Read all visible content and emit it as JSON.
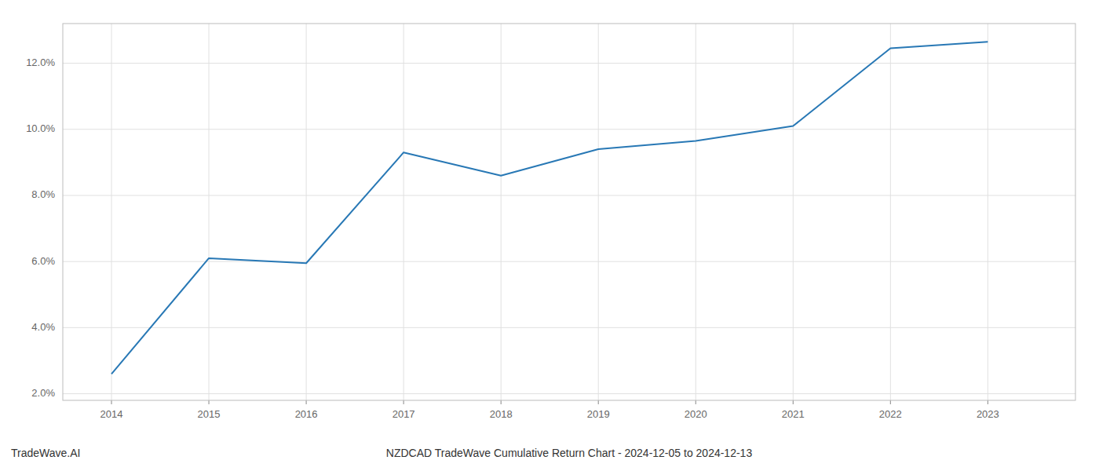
{
  "chart_data": {
    "type": "line",
    "title": "NZDCAD TradeWave Cumulative Return Chart - 2024-12-05 to 2024-12-13",
    "annotations": [
      "TradeWave.AI"
    ],
    "x": [
      2014,
      2015,
      2016,
      2017,
      2018,
      2019,
      2020,
      2021,
      2022,
      2023
    ],
    "values": [
      2.6,
      6.1,
      5.95,
      9.3,
      8.6,
      9.4,
      9.65,
      10.1,
      12.45,
      12.65
    ],
    "color": "#2878b5",
    "xlim": [
      2013.5,
      2023.9
    ],
    "ylim": [
      1.8,
      13.2
    ],
    "xticks": [
      2014,
      2015,
      2016,
      2017,
      2018,
      2019,
      2020,
      2021,
      2022,
      2023
    ],
    "yticks": [
      {
        "value": 2.0,
        "label": "2.0%"
      },
      {
        "value": 4.0,
        "label": "4.0%"
      },
      {
        "value": 6.0,
        "label": "6.0%"
      },
      {
        "value": 8.0,
        "label": "8.0%"
      },
      {
        "value": 10.0,
        "label": "10.0%"
      },
      {
        "value": 12.0,
        "label": "12.0%"
      }
    ],
    "grid": true
  }
}
